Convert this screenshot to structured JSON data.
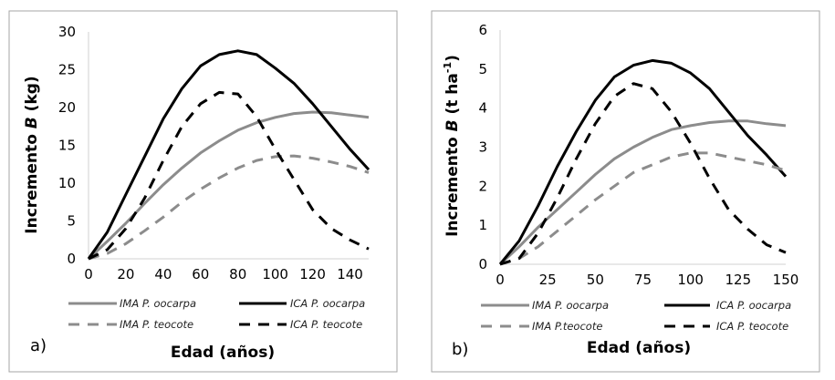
{
  "chart_data": [
    {
      "type": "line",
      "panel_label": "a)",
      "xlabel": "Edad (años)",
      "ylabel": {
        "prefix": "Incremento ",
        "italic": "B",
        "suffix": " (kg)",
        "sup": "",
        "close": ""
      },
      "xlim": [
        0,
        150
      ],
      "ylim": [
        0,
        30
      ],
      "xticks": [
        0,
        20,
        40,
        60,
        80,
        100,
        120,
        140
      ],
      "yticks": [
        0,
        5,
        10,
        15,
        20,
        25,
        30
      ],
      "grid": false,
      "legend_position": "bottom",
      "x": [
        0,
        10,
        20,
        30,
        40,
        50,
        60,
        70,
        80,
        90,
        100,
        110,
        120,
        130,
        140,
        150
      ],
      "series": [
        {
          "name": "IMA P. oocarpa",
          "color": "#8c8c8c",
          "dash": "solid",
          "values": [
            0,
            2.3,
            4.7,
            7.3,
            9.8,
            12,
            14,
            15.6,
            17,
            18,
            18.7,
            19.2,
            19.4,
            19.3,
            19,
            18.7
          ]
        },
        {
          "name": "ICA  P. oocarpa",
          "color": "#000000",
          "dash": "solid",
          "values": [
            0,
            3.5,
            8.5,
            13.5,
            18.5,
            22.5,
            25.5,
            27,
            27.5,
            27,
            25.2,
            23.2,
            20.5,
            17.5,
            14.5,
            11.8
          ]
        },
        {
          "name": "IMA P. teocote",
          "color": "#8c8c8c",
          "dash": "dashed",
          "values": [
            0,
            0.7,
            2,
            3.7,
            5.5,
            7.5,
            9.2,
            10.7,
            12,
            13,
            13.5,
            13.6,
            13.3,
            12.8,
            12.2,
            11.4
          ]
        },
        {
          "name": "ICA P. teocote",
          "color": "#000000",
          "dash": "dashed",
          "values": [
            0,
            1.2,
            4,
            8,
            13,
            17.5,
            20.5,
            22,
            21.8,
            18.8,
            14.5,
            10.5,
            6.5,
            4,
            2.5,
            1.3
          ]
        }
      ]
    },
    {
      "type": "line",
      "panel_label": "b)",
      "xlabel": "Edad (años)",
      "ylabel": {
        "prefix": "Incremento ",
        "italic": "B",
        "suffix": " (t ha",
        "sup": "-1",
        "close": ")"
      },
      "xlim": [
        0,
        150
      ],
      "ylim": [
        0,
        6
      ],
      "xticks": [
        0,
        25,
        50,
        75,
        100,
        125,
        150
      ],
      "yticks": [
        0,
        1,
        2,
        3,
        4,
        5,
        6
      ],
      "grid": false,
      "legend_position": "bottom",
      "x": [
        0,
        10,
        20,
        30,
        40,
        50,
        60,
        70,
        80,
        90,
        100,
        110,
        120,
        130,
        140,
        150
      ],
      "series": [
        {
          "name": "IMA P. oocarpa",
          "color": "#8c8c8c",
          "dash": "solid",
          "values": [
            0,
            0.45,
            0.95,
            1.4,
            1.85,
            2.3,
            2.7,
            3.0,
            3.25,
            3.45,
            3.55,
            3.63,
            3.67,
            3.67,
            3.6,
            3.55
          ]
        },
        {
          "name": "ICA P. oocarpa",
          "color": "#000000",
          "dash": "solid",
          "values": [
            0,
            0.6,
            1.5,
            2.5,
            3.4,
            4.2,
            4.8,
            5.1,
            5.22,
            5.15,
            4.9,
            4.5,
            3.9,
            3.3,
            2.8,
            2.25
          ]
        },
        {
          "name": "IMA P.teocote",
          "color": "#8c8c8c",
          "dash": "dashed",
          "values": [
            0,
            0.15,
            0.45,
            0.85,
            1.25,
            1.65,
            2.0,
            2.35,
            2.55,
            2.75,
            2.85,
            2.85,
            2.75,
            2.65,
            2.55,
            2.4
          ]
        },
        {
          "name": "ICA P. teocote",
          "color": "#000000",
          "dash": "dashed",
          "values": [
            0,
            0.15,
            0.8,
            1.7,
            2.7,
            3.6,
            4.3,
            4.63,
            4.5,
            3.9,
            3.1,
            2.2,
            1.4,
            0.9,
            0.5,
            0.3
          ]
        }
      ]
    }
  ]
}
